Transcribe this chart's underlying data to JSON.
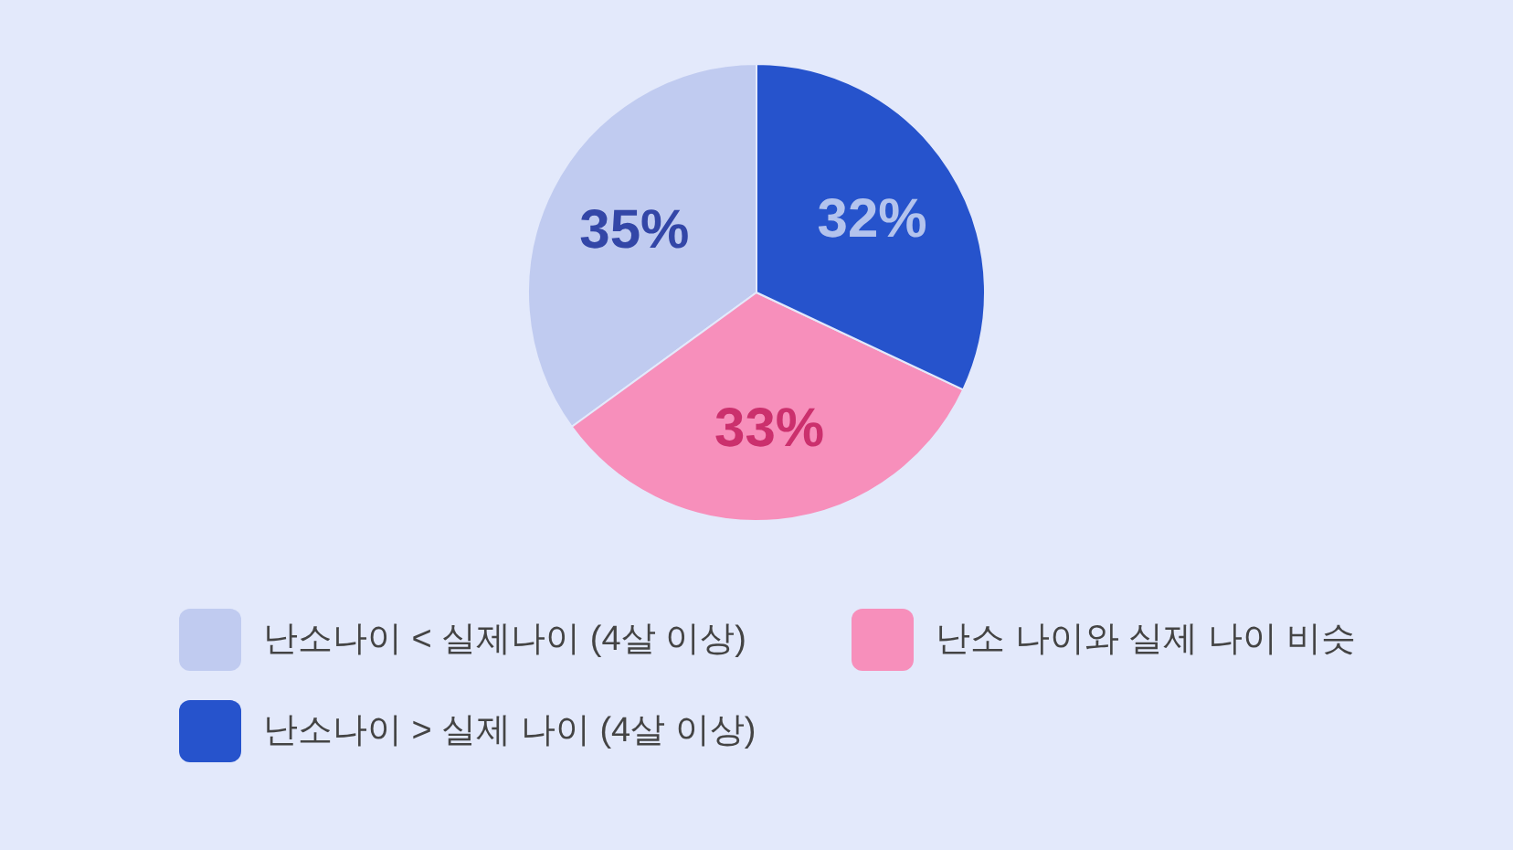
{
  "chart_data": {
    "type": "pie",
    "categories": [
      "난소나이 < 실제나이 (4살 이상)",
      "난소 나이와 실제 나이 비슷",
      "난소나이 > 실제 나이 (4살 이상)"
    ],
    "values": [
      35,
      33,
      32
    ],
    "colors": [
      "#c0cbf0",
      "#f78fbb",
      "#2653cc"
    ],
    "value_labels": [
      "35%",
      "33%",
      "32%"
    ],
    "legend": "bottom"
  }
}
